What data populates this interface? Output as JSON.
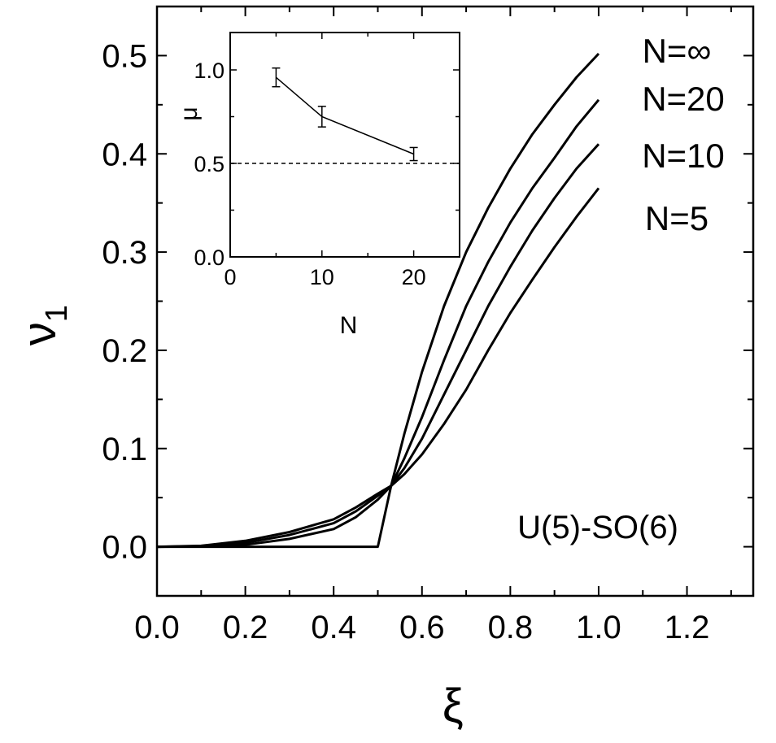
{
  "chart_data": [
    {
      "type": "line",
      "title": "",
      "xlabel": "ξ",
      "ylabel": "ν",
      "ylabel_subscript": "1",
      "xlim": [
        0.0,
        1.35
      ],
      "ylim": [
        -0.05,
        0.55
      ],
      "xticks": [
        "0.0",
        "0.2",
        "0.4",
        "0.6",
        "0.8",
        "1.0",
        "1.2"
      ],
      "yticks": [
        "0.0",
        "0.1",
        "0.2",
        "0.3",
        "0.4",
        "0.5"
      ],
      "annotation": "U(5)-SO(6)",
      "series": [
        {
          "name": "N=∞",
          "x": [
            0.0,
            0.1,
            0.2,
            0.3,
            0.4,
            0.5,
            0.53,
            0.56,
            0.6,
            0.65,
            0.7,
            0.75,
            0.8,
            0.85,
            0.9,
            0.95,
            1.0
          ],
          "y": [
            0.0,
            0.0,
            0.0,
            0.0,
            0.0,
            0.0,
            0.062,
            0.115,
            0.178,
            0.245,
            0.3,
            0.345,
            0.385,
            0.42,
            0.45,
            0.478,
            0.502
          ]
        },
        {
          "name": "N=20",
          "x": [
            0.0,
            0.1,
            0.2,
            0.3,
            0.4,
            0.45,
            0.5,
            0.53,
            0.56,
            0.6,
            0.65,
            0.7,
            0.75,
            0.8,
            0.85,
            0.9,
            0.95,
            1.0
          ],
          "y": [
            0.0,
            0.0002,
            0.002,
            0.008,
            0.018,
            0.03,
            0.048,
            0.062,
            0.09,
            0.132,
            0.19,
            0.245,
            0.29,
            0.33,
            0.365,
            0.396,
            0.428,
            0.455
          ]
        },
        {
          "name": "N=10",
          "x": [
            0.0,
            0.1,
            0.2,
            0.3,
            0.4,
            0.45,
            0.5,
            0.53,
            0.56,
            0.6,
            0.65,
            0.7,
            0.75,
            0.8,
            0.85,
            0.9,
            0.95,
            1.0
          ],
          "y": [
            0.0,
            0.0005,
            0.004,
            0.012,
            0.024,
            0.036,
            0.052,
            0.062,
            0.08,
            0.11,
            0.155,
            0.2,
            0.245,
            0.285,
            0.322,
            0.355,
            0.385,
            0.41
          ]
        },
        {
          "name": "N=5",
          "x": [
            0.0,
            0.1,
            0.2,
            0.3,
            0.4,
            0.45,
            0.5,
            0.53,
            0.56,
            0.6,
            0.65,
            0.7,
            0.75,
            0.8,
            0.85,
            0.9,
            0.95,
            1.0
          ],
          "y": [
            0.0,
            0.001,
            0.006,
            0.015,
            0.028,
            0.04,
            0.054,
            0.062,
            0.074,
            0.094,
            0.125,
            0.16,
            0.2,
            0.238,
            0.272,
            0.305,
            0.336,
            0.365
          ]
        }
      ]
    },
    {
      "type": "line",
      "title": "",
      "xlabel": "N",
      "ylabel": "μ",
      "xlim": [
        0,
        25
      ],
      "ylim": [
        0.0,
        1.2
      ],
      "xticks": [
        "0",
        "10",
        "20"
      ],
      "yticks": [
        "0.0",
        "0.5",
        "1.0"
      ],
      "reference_line": {
        "y": 0.5,
        "style": "dashed"
      },
      "series": [
        {
          "x": [
            5,
            10,
            20
          ],
          "y": [
            0.96,
            0.75,
            0.55
          ],
          "yerr": [
            0.05,
            0.055,
            0.035
          ]
        }
      ]
    }
  ]
}
